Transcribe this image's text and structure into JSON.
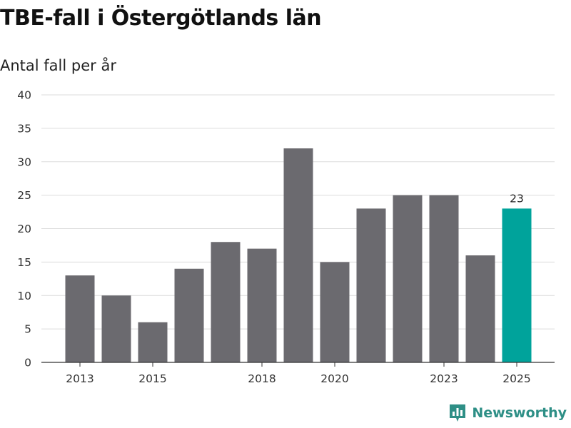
{
  "title": "TBE-fall i Östergötlands län",
  "subtitle": "Antal fall per år",
  "brand": {
    "name": "Newsworthy",
    "color": "#2e8f86",
    "icon": "chart-icon"
  },
  "colors": {
    "bar": "#6b6a6f",
    "highlight": "#00a39b",
    "grid": "#dcdcdc",
    "axis": "#333333"
  },
  "chart_data": {
    "type": "bar",
    "title": "TBE-fall i Östergötlands län",
    "subtitle": "Antal fall per år",
    "xlabel": "",
    "ylabel": "Antal fall per år",
    "categories": [
      2013,
      2014,
      2015,
      2016,
      2017,
      2018,
      2019,
      2020,
      2021,
      2022,
      2023,
      2024,
      2025
    ],
    "values": [
      13,
      10,
      6,
      14,
      18,
      17,
      32,
      15,
      23,
      25,
      25,
      16,
      23
    ],
    "highlight_index": 12,
    "data_labels": [
      {
        "index": 12,
        "text": "23"
      }
    ],
    "ylim": [
      0,
      40
    ],
    "yticks": [
      0,
      5,
      10,
      15,
      20,
      25,
      30,
      35,
      40
    ],
    "xticks": [
      "2013",
      "2015",
      "2018",
      "2020",
      "2023",
      "2025"
    ],
    "grid": true
  }
}
